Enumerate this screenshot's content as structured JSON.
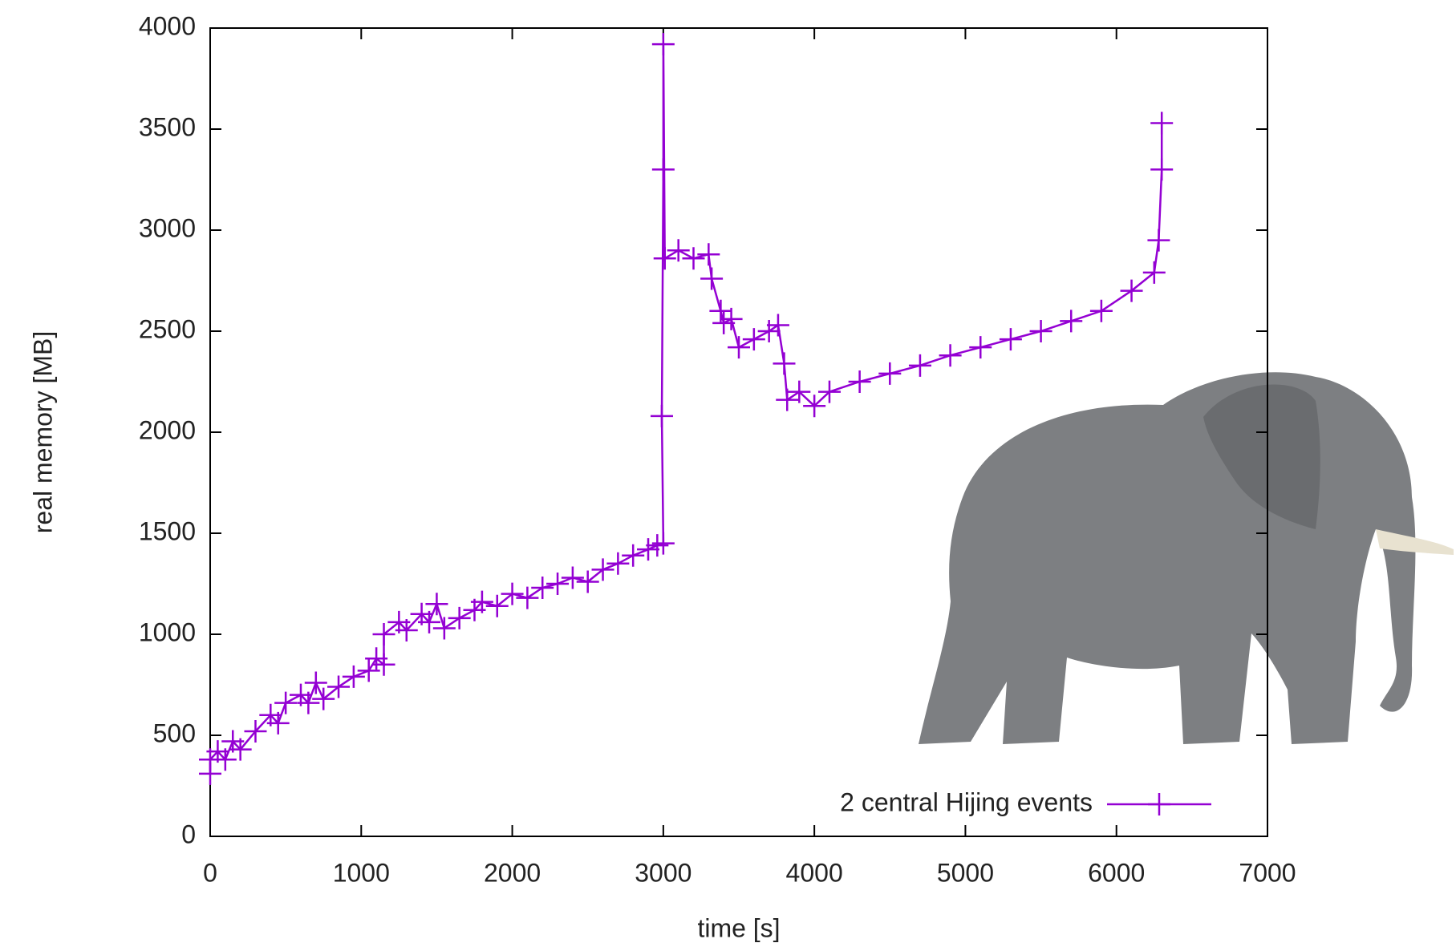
{
  "chart_data": {
    "type": "line",
    "xlabel": "time [s]",
    "ylabel": "real memory [MB]",
    "xlim": [
      0,
      7000
    ],
    "xticks": [
      0,
      1000,
      2000,
      3000,
      4000,
      5000,
      6000,
      7000
    ],
    "ylim": [
      0,
      4000
    ],
    "yticks": [
      0,
      500,
      1000,
      1500,
      2000,
      2500,
      3000,
      3500,
      4000
    ],
    "legend": "bottom right",
    "grid": false,
    "series": [
      {
        "name": "2 central Hijing events",
        "color": "#9400d3",
        "x": [
          0,
          0,
          50,
          100,
          150,
          200,
          300,
          400,
          450,
          500,
          600,
          650,
          700,
          750,
          850,
          950,
          1050,
          1100,
          1150,
          1150,
          1250,
          1300,
          1400,
          1450,
          1500,
          1550,
          1650,
          1750,
          1800,
          1900,
          2000,
          2100,
          2200,
          2300,
          2400,
          2500,
          2600,
          2700,
          2800,
          2900,
          2960,
          3000,
          2990,
          3000,
          3000,
          3010,
          3100,
          3200,
          3300,
          3320,
          3380,
          3400,
          3450,
          3500,
          3600,
          3700,
          3760,
          3800,
          3820,
          3900,
          4000,
          4100,
          4300,
          4500,
          4700,
          4900,
          5100,
          5300,
          5500,
          5700,
          5900,
          6100,
          6250,
          6280,
          6300,
          6300
        ],
        "values": [
          310,
          380,
          420,
          380,
          470,
          430,
          520,
          600,
          560,
          660,
          700,
          660,
          760,
          680,
          740,
          790,
          820,
          880,
          850,
          1000,
          1060,
          1020,
          1100,
          1060,
          1150,
          1030,
          1080,
          1120,
          1160,
          1140,
          1200,
          1180,
          1230,
          1250,
          1280,
          1260,
          1320,
          1350,
          1390,
          1420,
          1440,
          1450,
          2080,
          3300,
          3920,
          2860,
          2900,
          2860,
          2880,
          2760,
          2600,
          2540,
          2560,
          2420,
          2460,
          2500,
          2530,
          2340,
          2160,
          2200,
          2130,
          2200,
          2250,
          2290,
          2330,
          2380,
          2420,
          2460,
          2500,
          2550,
          2600,
          2700,
          2790,
          2950,
          3300,
          3530
        ]
      }
    ]
  }
}
